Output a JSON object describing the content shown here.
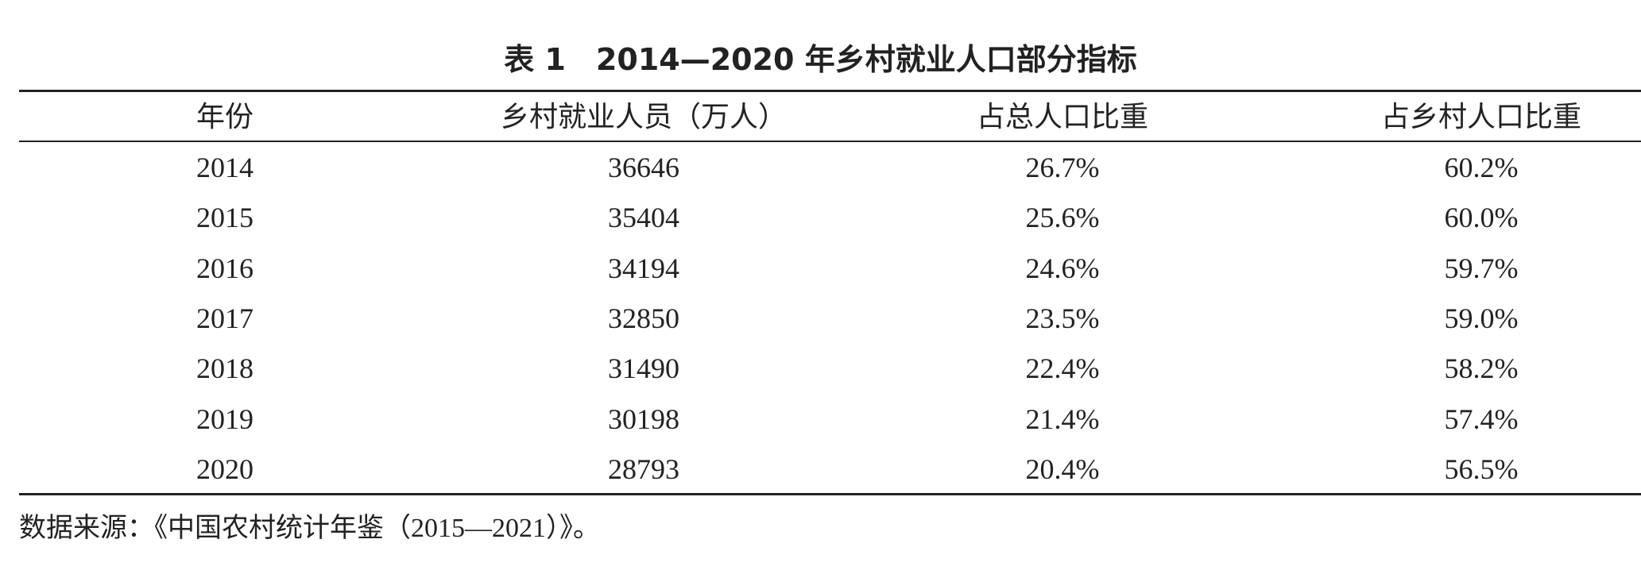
{
  "title": "表 1　2014—2020 年乡村就业人口部分指标",
  "table": {
    "header": [
      "年份",
      "乡村就业人员（万人）",
      "占总人口比重",
      "占乡村人口比重"
    ],
    "rows": [
      [
        "2014",
        "36646",
        "26.7%",
        "60.2%"
      ],
      [
        "2015",
        "35404",
        "25.6%",
        "60.0%"
      ],
      [
        "2016",
        "34194",
        "24.6%",
        "59.7%"
      ],
      [
        "2017",
        "32850",
        "23.5%",
        "59.0%"
      ],
      [
        "2018",
        "31490",
        "22.4%",
        "58.2%"
      ],
      [
        "2019",
        "30198",
        "21.4%",
        "57.4%"
      ],
      [
        "2020",
        "28793",
        "20.4%",
        "56.5%"
      ]
    ]
  },
  "source": "数据来源：《中国农村统计年鉴（2015—2021）》。"
}
